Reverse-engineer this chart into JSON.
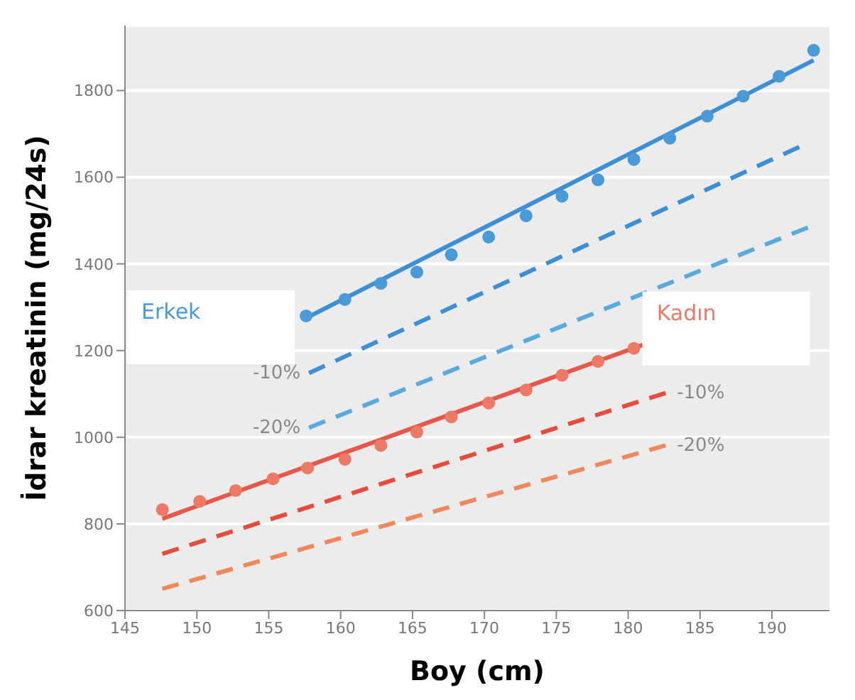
{
  "chart_data": {
    "type": "scatter",
    "xlabel": "Boy (cm)",
    "ylabel": "İdrar kreatinin (mg/24s)",
    "xlim": [
      145,
      194
    ],
    "xticks": [
      145,
      150,
      155,
      160,
      165,
      170,
      175,
      180,
      185,
      190
    ],
    "ylim": [
      600,
      1950
    ],
    "yticks": [
      600,
      800,
      1000,
      1200,
      1400,
      1600,
      1800
    ],
    "grid": "y",
    "series": [
      {
        "name": "Erkek",
        "marker": "circle",
        "color": "#4a9ad8",
        "x": [
          157.6,
          160.3,
          162.8,
          165.3,
          167.7,
          170.3,
          172.9,
          175.4,
          177.9,
          180.4,
          182.9,
          185.5,
          188,
          190.5,
          192.9
        ],
        "values": [
          1280,
          1318,
          1355,
          1381,
          1421,
          1462,
          1511,
          1556,
          1594,
          1641,
          1690,
          1741,
          1787,
          1833,
          1893
        ]
      },
      {
        "type": "line",
        "marker": "none",
        "color": "#3d8fd6",
        "line_style": "solid",
        "x": [
          157.6,
          192.9
        ],
        "values": [
          1275,
          1870
        ]
      },
      {
        "name": "-10%",
        "type": "line",
        "marker": "none",
        "color": "#3d8fd6",
        "line_style": "dashed",
        "x": [
          157.8,
          191.9
        ],
        "values": [
          1148,
          1670
        ]
      },
      {
        "name": "-20%",
        "type": "line",
        "marker": "none",
        "color": "#5aaae0",
        "line_style": "dashed",
        "x": [
          157.8,
          192.5
        ],
        "values": [
          1022,
          1484
        ]
      },
      {
        "name": "Kadın",
        "marker": "circle",
        "color": "#ec7a66",
        "x": [
          147.6,
          150.2,
          152.7,
          155.3,
          157.7,
          160.3,
          162.8,
          165.3,
          167.7,
          170.3,
          172.9,
          175.4,
          177.9,
          180.4
        ],
        "values": [
          833,
          852,
          877,
          904,
          929,
          949,
          981,
          1012,
          1047,
          1079,
          1109,
          1143,
          1175,
          1205
        ]
      },
      {
        "type": "line",
        "marker": "none",
        "color": "#e8584a",
        "line_style": "solid",
        "x": [
          147.6,
          181
        ],
        "values": [
          812,
          1213
        ]
      },
      {
        "name": "-10%",
        "type": "line",
        "marker": "none",
        "color": "#e84c3c",
        "line_style": "dashed",
        "x": [
          147.6,
          182.6
        ],
        "values": [
          731,
          1102
        ]
      },
      {
        "name": "-20%",
        "type": "line",
        "marker": "none",
        "color": "#f0885c",
        "line_style": "dashed",
        "x": [
          147.6,
          182.6
        ],
        "values": [
          650,
          981
        ]
      }
    ]
  }
}
